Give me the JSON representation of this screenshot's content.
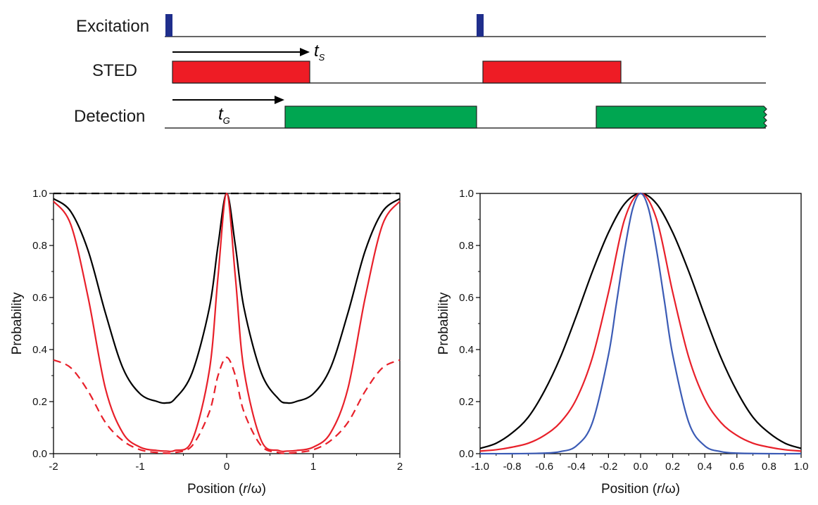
{
  "timing_diagram": {
    "rows": [
      {
        "label": "Excitation",
        "color": "#1f2e8c"
      },
      {
        "label": "STED",
        "color": "#ee1c25"
      },
      {
        "label": "Detection",
        "color": "#00a651"
      }
    ],
    "annotations": {
      "t_s": {
        "base": "t",
        "sub": "S"
      },
      "t_g": {
        "base": "t",
        "sub": "G"
      }
    }
  },
  "chart_data": [
    {
      "type": "line",
      "title": "",
      "xlabel": {
        "text": "Position (",
        "italic": "r",
        "rest": "/ω)"
      },
      "ylabel": "Probability",
      "xlim": [
        -2,
        2
      ],
      "ylim": [
        0,
        1.0
      ],
      "x_ticks": [
        "-2",
        "-1",
        "0",
        "1",
        "2"
      ],
      "y_ticks": [
        "0.0",
        "0.2",
        "0.4",
        "0.6",
        "0.8",
        "1.0"
      ],
      "series": [
        {
          "color": "#000000",
          "style": "dashed",
          "x": [
            -2,
            2
          ],
          "y": [
            1.0,
            1.0
          ]
        },
        {
          "color": "#000000",
          "style": "solid",
          "x": [
            -2.0,
            -1.8,
            -1.6,
            -1.4,
            -1.2,
            -1.0,
            -0.8,
            -0.7,
            -0.6,
            -0.4,
            -0.2,
            -0.1,
            0.0,
            0.1,
            0.2,
            0.4,
            0.6,
            0.7,
            0.8,
            1.0,
            1.2,
            1.4,
            1.6,
            1.8,
            2.0
          ],
          "y": [
            0.98,
            0.93,
            0.78,
            0.54,
            0.33,
            0.23,
            0.2,
            0.195,
            0.21,
            0.31,
            0.56,
            0.8,
            1.0,
            0.8,
            0.56,
            0.31,
            0.21,
            0.195,
            0.2,
            0.23,
            0.33,
            0.54,
            0.78,
            0.93,
            0.98
          ]
        },
        {
          "color": "#e8202a",
          "style": "solid",
          "x": [
            -2.0,
            -1.8,
            -1.6,
            -1.4,
            -1.2,
            -1.0,
            -0.8,
            -0.7,
            -0.6,
            -0.4,
            -0.2,
            -0.1,
            0.0,
            0.1,
            0.2,
            0.4,
            0.6,
            0.7,
            0.8,
            1.0,
            1.2,
            1.4,
            1.6,
            1.8,
            2.0
          ],
          "y": [
            0.97,
            0.88,
            0.6,
            0.25,
            0.08,
            0.025,
            0.012,
            0.01,
            0.012,
            0.05,
            0.32,
            0.68,
            1.0,
            0.68,
            0.32,
            0.05,
            0.012,
            0.01,
            0.012,
            0.025,
            0.08,
            0.25,
            0.6,
            0.88,
            0.97
          ]
        },
        {
          "color": "#e8202a",
          "style": "dashed",
          "x": [
            -2.0,
            -1.8,
            -1.6,
            -1.4,
            -1.2,
            -1.0,
            -0.8,
            -0.7,
            -0.6,
            -0.4,
            -0.2,
            -0.1,
            0.0,
            0.1,
            0.2,
            0.4,
            0.6,
            0.7,
            0.8,
            1.0,
            1.2,
            1.4,
            1.6,
            1.8,
            2.0
          ],
          "y": [
            0.36,
            0.33,
            0.24,
            0.12,
            0.05,
            0.015,
            0.004,
            0.002,
            0.004,
            0.03,
            0.16,
            0.3,
            0.37,
            0.3,
            0.16,
            0.03,
            0.004,
            0.002,
            0.004,
            0.015,
            0.05,
            0.12,
            0.24,
            0.33,
            0.36
          ]
        }
      ]
    },
    {
      "type": "line",
      "title": "",
      "xlabel": {
        "text": "Position (",
        "italic": "r",
        "rest": "/ω)"
      },
      "ylabel": "Probability",
      "xlim": [
        -1.0,
        1.0
      ],
      "ylim": [
        0,
        1.0
      ],
      "x_ticks": [
        "-1.0",
        "-0.8",
        "-0.6",
        "-0.4",
        "-0.2",
        "0.0",
        "0.2",
        "0.4",
        "0.6",
        "0.8",
        "1.0"
      ],
      "y_ticks": [
        "0.0",
        "0.2",
        "0.4",
        "0.6",
        "0.8",
        "1.0"
      ],
      "series": [
        {
          "color": "#000000",
          "style": "solid",
          "x": [
            -1.0,
            -0.9,
            -0.8,
            -0.7,
            -0.6,
            -0.5,
            -0.4,
            -0.3,
            -0.2,
            -0.1,
            0.0,
            0.1,
            0.2,
            0.3,
            0.4,
            0.5,
            0.6,
            0.7,
            0.8,
            0.9,
            1.0
          ],
          "y": [
            0.02,
            0.04,
            0.08,
            0.14,
            0.24,
            0.37,
            0.53,
            0.7,
            0.85,
            0.96,
            1.0,
            0.96,
            0.85,
            0.7,
            0.53,
            0.37,
            0.24,
            0.14,
            0.08,
            0.04,
            0.02
          ]
        },
        {
          "color": "#e8202a",
          "style": "solid",
          "x": [
            -1.0,
            -0.9,
            -0.8,
            -0.7,
            -0.6,
            -0.5,
            -0.4,
            -0.3,
            -0.2,
            -0.1,
            0.0,
            0.1,
            0.2,
            0.3,
            0.4,
            0.5,
            0.6,
            0.7,
            0.8,
            0.9,
            1.0
          ],
          "y": [
            0.01,
            0.015,
            0.025,
            0.04,
            0.07,
            0.12,
            0.21,
            0.37,
            0.62,
            0.9,
            1.0,
            0.9,
            0.62,
            0.37,
            0.21,
            0.12,
            0.07,
            0.04,
            0.025,
            0.015,
            0.01
          ]
        },
        {
          "color": "#3b5bb5",
          "style": "solid",
          "x": [
            -1.0,
            -0.8,
            -0.6,
            -0.5,
            -0.4,
            -0.3,
            -0.2,
            -0.15,
            -0.1,
            -0.05,
            0.0,
            0.05,
            0.1,
            0.15,
            0.2,
            0.3,
            0.4,
            0.5,
            0.6,
            0.8,
            1.0
          ],
          "y": [
            0.0,
            0.0,
            0.002,
            0.008,
            0.03,
            0.12,
            0.38,
            0.58,
            0.78,
            0.94,
            1.0,
            0.94,
            0.78,
            0.58,
            0.38,
            0.12,
            0.03,
            0.008,
            0.002,
            0.0,
            0.0
          ]
        }
      ]
    }
  ]
}
